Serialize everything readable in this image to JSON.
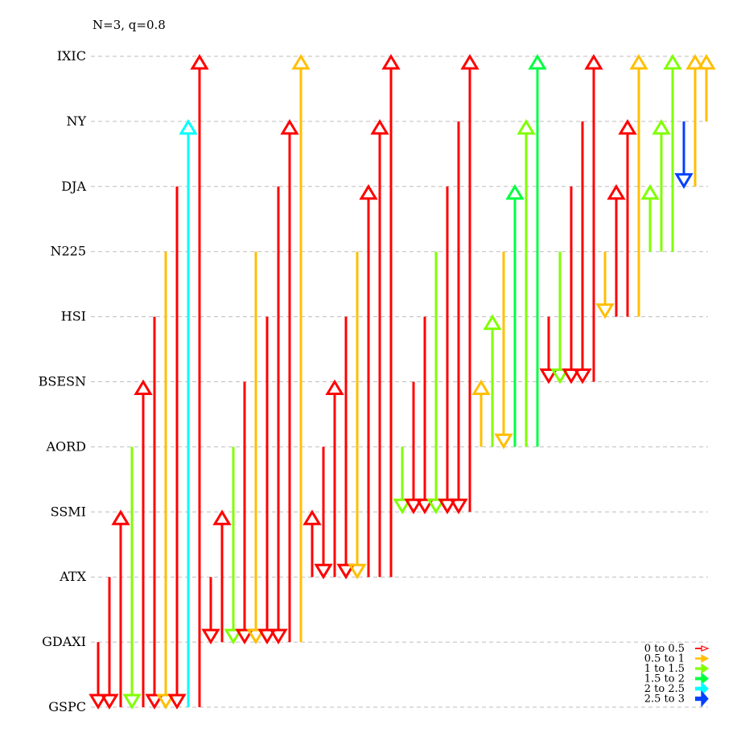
{
  "chart_data": {
    "type": "diagram",
    "title": "N=3, q=0.8",
    "levels": [
      "GSPC",
      "GDAXI",
      "ATX",
      "SSMI",
      "AORD",
      "BSESN",
      "HSI",
      "N225",
      "DJA",
      "NY",
      "IXIC"
    ],
    "legend": {
      "placement": "bottom-right",
      "entries": [
        {
          "label": "0 to 0.5",
          "color": "#ff0000"
        },
        {
          "label": "0.5 to 1",
          "color": "#ffbf00"
        },
        {
          "label": "1 to 1.5",
          "color": "#80ff00"
        },
        {
          "label": "1.5 to 2",
          "color": "#00ff40"
        },
        {
          "label": "2 to 2.5",
          "color": "#00ffff"
        },
        {
          "label": "2.5 to 3",
          "color": "#0040ff"
        }
      ]
    },
    "arrows": [
      {
        "from": "GDAXI",
        "to": "GSPC",
        "bin": 0
      },
      {
        "from": "ATX",
        "to": "GSPC",
        "bin": 0
      },
      {
        "from": "GSPC",
        "to": "SSMI",
        "bin": 0
      },
      {
        "from": "AORD",
        "to": "GSPC",
        "bin": 2
      },
      {
        "from": "GSPC",
        "to": "BSESN",
        "bin": 0
      },
      {
        "from": "HSI",
        "to": "GSPC",
        "bin": 0
      },
      {
        "from": "N225",
        "to": "GSPC",
        "bin": 1
      },
      {
        "from": "DJA",
        "to": "GSPC",
        "bin": 0
      },
      {
        "from": "GSPC",
        "to": "NY",
        "bin": 4
      },
      {
        "from": "GSPC",
        "to": "IXIC",
        "bin": 0
      },
      {
        "from": "ATX",
        "to": "GDAXI",
        "bin": 0
      },
      {
        "from": "GDAXI",
        "to": "SSMI",
        "bin": 0
      },
      {
        "from": "AORD",
        "to": "GDAXI",
        "bin": 2
      },
      {
        "from": "BSESN",
        "to": "GDAXI",
        "bin": 0
      },
      {
        "from": "N225",
        "to": "GDAXI",
        "bin": 1
      },
      {
        "from": "HSI",
        "to": "GDAXI",
        "bin": 0
      },
      {
        "from": "DJA",
        "to": "GDAXI",
        "bin": 0
      },
      {
        "from": "GDAXI",
        "to": "NY",
        "bin": 0
      },
      {
        "from": "GDAXI",
        "to": "IXIC",
        "bin": 1
      },
      {
        "from": "ATX",
        "to": "SSMI",
        "bin": 0
      },
      {
        "from": "AORD",
        "to": "ATX",
        "bin": 0
      },
      {
        "from": "ATX",
        "to": "BSESN",
        "bin": 0
      },
      {
        "from": "HSI",
        "to": "ATX",
        "bin": 0
      },
      {
        "from": "N225",
        "to": "ATX",
        "bin": 1
      },
      {
        "from": "ATX",
        "to": "DJA",
        "bin": 0
      },
      {
        "from": "ATX",
        "to": "NY",
        "bin": 0
      },
      {
        "from": "ATX",
        "to": "IXIC",
        "bin": 0
      },
      {
        "from": "AORD",
        "to": "SSMI",
        "bin": 2
      },
      {
        "from": "BSESN",
        "to": "SSMI",
        "bin": 0
      },
      {
        "from": "HSI",
        "to": "SSMI",
        "bin": 0
      },
      {
        "from": "N225",
        "to": "SSMI",
        "bin": 2
      },
      {
        "from": "DJA",
        "to": "SSMI",
        "bin": 0
      },
      {
        "from": "NY",
        "to": "SSMI",
        "bin": 0
      },
      {
        "from": "SSMI",
        "to": "IXIC",
        "bin": 0
      },
      {
        "from": "AORD",
        "to": "BSESN",
        "bin": 1
      },
      {
        "from": "AORD",
        "to": "HSI",
        "bin": 2
      },
      {
        "from": "N225",
        "to": "AORD",
        "bin": 1
      },
      {
        "from": "AORD",
        "to": "DJA",
        "bin": 3
      },
      {
        "from": "AORD",
        "to": "NY",
        "bin": 2
      },
      {
        "from": "AORD",
        "to": "IXIC",
        "bin": 3
      },
      {
        "from": "HSI",
        "to": "BSESN",
        "bin": 0
      },
      {
        "from": "N225",
        "to": "BSESN",
        "bin": 2
      },
      {
        "from": "DJA",
        "to": "BSESN",
        "bin": 0
      },
      {
        "from": "NY",
        "to": "BSESN",
        "bin": 0
      },
      {
        "from": "BSESN",
        "to": "IXIC",
        "bin": 0
      },
      {
        "from": "N225",
        "to": "HSI",
        "bin": 1
      },
      {
        "from": "HSI",
        "to": "DJA",
        "bin": 0
      },
      {
        "from": "HSI",
        "to": "NY",
        "bin": 0
      },
      {
        "from": "HSI",
        "to": "IXIC",
        "bin": 1
      },
      {
        "from": "N225",
        "to": "DJA",
        "bin": 2
      },
      {
        "from": "N225",
        "to": "NY",
        "bin": 2
      },
      {
        "from": "N225",
        "to": "IXIC",
        "bin": 2
      },
      {
        "from": "NY",
        "to": "DJA",
        "bin": 5
      },
      {
        "from": "DJA",
        "to": "IXIC",
        "bin": 1
      },
      {
        "from": "NY",
        "to": "IXIC",
        "bin": 1
      }
    ]
  }
}
